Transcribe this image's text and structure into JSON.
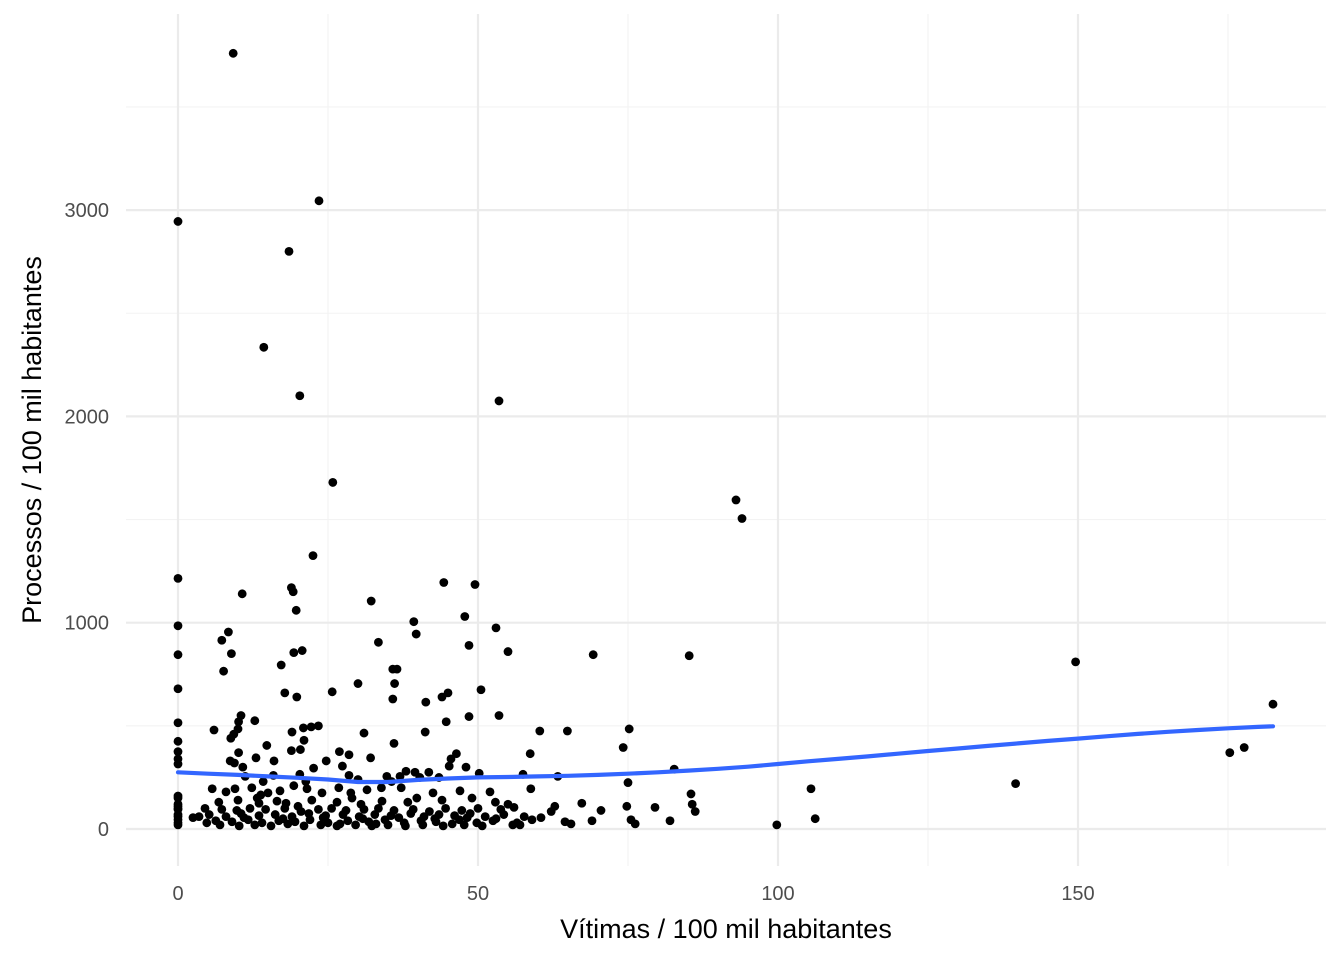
{
  "chart_data": {
    "type": "scatter",
    "title": "",
    "xlabel": "Vítimas / 100 mil habitantes",
    "ylabel": "Processos / 100 mil habitantes",
    "xlim": [
      -8,
      190
    ],
    "ylim": [
      -170,
      3900
    ],
    "x_ticks": [
      0,
      50,
      100,
      150
    ],
    "x_tick_labels": [
      "0",
      "50",
      "100",
      "150"
    ],
    "x_minor": [
      25,
      75,
      125,
      175
    ],
    "y_ticks": [
      0,
      1000,
      2000,
      3000
    ],
    "y_tick_labels": [
      "0",
      "1000",
      "2000",
      "3000"
    ],
    "y_minor": [
      500,
      1500,
      2500,
      3500
    ],
    "grid": true,
    "legend": "none",
    "colors": {
      "points": "#000000",
      "smooth": "#3366ff",
      "grid": "#ebebeb"
    },
    "points": [
      [
        9.2,
        3760
      ],
      [
        0,
        2945
      ],
      [
        23.5,
        3045
      ],
      [
        18.5,
        2800
      ],
      [
        14.3,
        2335
      ],
      [
        20.3,
        2100
      ],
      [
        53.5,
        2075
      ],
      [
        25.8,
        1680
      ],
      [
        93.0,
        1595
      ],
      [
        94.0,
        1505
      ],
      [
        22.5,
        1325
      ],
      [
        0,
        1215
      ],
      [
        44.3,
        1195
      ],
      [
        49.5,
        1185
      ],
      [
        18.9,
        1170
      ],
      [
        19.2,
        1150
      ],
      [
        10.7,
        1140
      ],
      [
        32.2,
        1105
      ],
      [
        19.7,
        1060
      ],
      [
        47.8,
        1030
      ],
      [
        39.3,
        1005
      ],
      [
        0,
        985
      ],
      [
        53.0,
        975
      ],
      [
        8.4,
        955
      ],
      [
        39.7,
        945
      ],
      [
        7.3,
        915
      ],
      [
        33.4,
        905
      ],
      [
        48.5,
        890
      ],
      [
        0,
        845
      ],
      [
        69.2,
        845
      ],
      [
        85.2,
        840
      ],
      [
        20.7,
        865
      ],
      [
        19.3,
        855
      ],
      [
        8.9,
        850
      ],
      [
        55.0,
        860
      ],
      [
        17.2,
        795
      ],
      [
        35.8,
        775
      ],
      [
        36.5,
        775
      ],
      [
        7.6,
        765
      ],
      [
        149.6,
        810
      ],
      [
        30.0,
        705
      ],
      [
        36.1,
        705
      ],
      [
        0,
        680
      ],
      [
        50.5,
        675
      ],
      [
        25.7,
        665
      ],
      [
        17.8,
        660
      ],
      [
        45.0,
        660
      ],
      [
        44.0,
        640
      ],
      [
        19.8,
        640
      ],
      [
        35.8,
        630
      ],
      [
        41.3,
        615
      ],
      [
        182.5,
        605
      ],
      [
        10.5,
        550
      ],
      [
        12.8,
        525
      ],
      [
        10.1,
        520
      ],
      [
        44.7,
        520
      ],
      [
        0,
        515
      ],
      [
        48.5,
        545
      ],
      [
        53.5,
        550
      ],
      [
        22.2,
        495
      ],
      [
        20.9,
        490
      ],
      [
        23.4,
        500
      ],
      [
        6.0,
        480
      ],
      [
        10.0,
        485
      ],
      [
        19.0,
        470
      ],
      [
        31.0,
        465
      ],
      [
        41.2,
        470
      ],
      [
        75.2,
        485
      ],
      [
        60.3,
        475
      ],
      [
        64.9,
        475
      ],
      [
        0,
        425
      ],
      [
        8.8,
        440
      ],
      [
        9.3,
        460
      ],
      [
        14.8,
        405
      ],
      [
        21.0,
        430
      ],
      [
        0,
        375
      ],
      [
        10.1,
        370
      ],
      [
        20.4,
        385
      ],
      [
        26.9,
        375
      ],
      [
        28.5,
        360
      ],
      [
        36.0,
        415
      ],
      [
        46.4,
        365
      ],
      [
        45.5,
        340
      ],
      [
        74.2,
        395
      ],
      [
        58.7,
        365
      ],
      [
        0,
        340
      ],
      [
        13.0,
        345
      ],
      [
        24.7,
        330
      ],
      [
        32.1,
        345
      ],
      [
        18.9,
        380
      ],
      [
        0,
        315
      ],
      [
        8.7,
        330
      ],
      [
        9.4,
        320
      ],
      [
        10.8,
        300
      ],
      [
        16.0,
        330
      ],
      [
        22.6,
        295
      ],
      [
        27.4,
        305
      ],
      [
        45.2,
        305
      ],
      [
        48.0,
        300
      ],
      [
        38.0,
        280
      ],
      [
        39.5,
        275
      ],
      [
        41.8,
        275
      ],
      [
        82.7,
        290
      ],
      [
        175.3,
        370
      ],
      [
        177.7,
        395
      ],
      [
        11.2,
        255
      ],
      [
        15.9,
        260
      ],
      [
        20.3,
        265
      ],
      [
        28.5,
        260
      ],
      [
        34.8,
        255
      ],
      [
        37.0,
        255
      ],
      [
        40.3,
        250
      ],
      [
        50.2,
        270
      ],
      [
        57.5,
        265
      ],
      [
        63.3,
        255
      ],
      [
        75.0,
        225
      ],
      [
        139.6,
        220
      ],
      [
        0,
        160
      ],
      [
        0,
        150
      ],
      [
        5.7,
        195
      ],
      [
        8.0,
        180
      ],
      [
        9.5,
        195
      ],
      [
        12.3,
        200
      ],
      [
        13.8,
        165
      ],
      [
        15.0,
        175
      ],
      [
        17.0,
        185
      ],
      [
        19.3,
        210
      ],
      [
        21.5,
        195
      ],
      [
        24.0,
        175
      ],
      [
        26.8,
        200
      ],
      [
        28.8,
        175
      ],
      [
        31.5,
        190
      ],
      [
        33.9,
        200
      ],
      [
        37.2,
        200
      ],
      [
        42.5,
        175
      ],
      [
        47.0,
        185
      ],
      [
        52.0,
        180
      ],
      [
        58.8,
        195
      ],
      [
        85.5,
        170
      ],
      [
        105.5,
        195
      ],
      [
        0,
        120
      ],
      [
        0,
        110
      ],
      [
        6.8,
        130
      ],
      [
        10.0,
        140
      ],
      [
        13.2,
        150
      ],
      [
        16.5,
        135
      ],
      [
        18.0,
        125
      ],
      [
        22.3,
        140
      ],
      [
        26.5,
        130
      ],
      [
        30.5,
        120
      ],
      [
        34.0,
        135
      ],
      [
        38.3,
        130
      ],
      [
        44.0,
        140
      ],
      [
        49.0,
        150
      ],
      [
        52.9,
        130
      ],
      [
        55.0,
        120
      ],
      [
        62.8,
        110
      ],
      [
        67.3,
        125
      ],
      [
        79.5,
        105
      ],
      [
        85.7,
        120
      ],
      [
        0,
        100
      ],
      [
        0,
        95
      ],
      [
        4.5,
        100
      ],
      [
        7.3,
        95
      ],
      [
        9.8,
        90
      ],
      [
        12.0,
        100
      ],
      [
        14.6,
        95
      ],
      [
        17.8,
        100
      ],
      [
        20.5,
        85
      ],
      [
        23.4,
        95
      ],
      [
        25.6,
        100
      ],
      [
        28.0,
        90
      ],
      [
        31.0,
        95
      ],
      [
        33.4,
        100
      ],
      [
        36.0,
        90
      ],
      [
        39.2,
        95
      ],
      [
        41.9,
        85
      ],
      [
        44.6,
        100
      ],
      [
        47.3,
        90
      ],
      [
        50.0,
        100
      ],
      [
        53.8,
        95
      ],
      [
        56.0,
        105
      ],
      [
        62.2,
        85
      ],
      [
        70.5,
        90
      ],
      [
        74.8,
        110
      ],
      [
        86.2,
        85
      ],
      [
        0,
        70
      ],
      [
        0,
        60
      ],
      [
        5.2,
        70
      ],
      [
        8.0,
        60
      ],
      [
        10.5,
        75
      ],
      [
        13.5,
        65
      ],
      [
        16.2,
        70
      ],
      [
        19.0,
        60
      ],
      [
        21.8,
        75
      ],
      [
        24.6,
        65
      ],
      [
        27.5,
        70
      ],
      [
        30.2,
        60
      ],
      [
        32.8,
        70
      ],
      [
        35.5,
        65
      ],
      [
        38.8,
        75
      ],
      [
        41.0,
        60
      ],
      [
        43.5,
        70
      ],
      [
        46.1,
        65
      ],
      [
        48.7,
        75
      ],
      [
        51.2,
        60
      ],
      [
        54.3,
        70
      ],
      [
        57.7,
        60
      ],
      [
        0,
        45
      ],
      [
        0,
        30
      ],
      [
        0,
        20
      ],
      [
        2.5,
        55
      ],
      [
        6.3,
        40
      ],
      [
        9.0,
        35
      ],
      [
        11.7,
        45
      ],
      [
        14.0,
        30
      ],
      [
        16.8,
        40
      ],
      [
        19.5,
        35
      ],
      [
        22.0,
        45
      ],
      [
        25.0,
        30
      ],
      [
        28.3,
        40
      ],
      [
        31.8,
        35
      ],
      [
        34.5,
        45
      ],
      [
        37.7,
        30
      ],
      [
        40.5,
        40
      ],
      [
        43.0,
        35
      ],
      [
        46.9,
        45
      ],
      [
        49.8,
        30
      ],
      [
        52.5,
        40
      ],
      [
        56.5,
        30
      ],
      [
        59.0,
        45
      ],
      [
        64.5,
        35
      ],
      [
        69.0,
        40
      ],
      [
        75.5,
        45
      ],
      [
        82.0,
        40
      ],
      [
        76.2,
        25
      ],
      [
        3.5,
        60
      ],
      [
        7.0,
        20
      ],
      [
        10.2,
        15
      ],
      [
        12.8,
        20
      ],
      [
        15.5,
        15
      ],
      [
        18.3,
        25
      ],
      [
        21.0,
        15
      ],
      [
        23.8,
        20
      ],
      [
        26.5,
        15
      ],
      [
        29.6,
        20
      ],
      [
        32.3,
        15
      ],
      [
        35.0,
        20
      ],
      [
        37.9,
        15
      ],
      [
        40.8,
        20
      ],
      [
        44.2,
        15
      ],
      [
        47.7,
        20
      ],
      [
        50.7,
        15
      ],
      [
        55.8,
        20
      ],
      [
        57.0,
        20
      ],
      [
        65.5,
        25
      ],
      [
        99.8,
        20
      ],
      [
        106.2,
        50
      ],
      [
        4.8,
        30
      ],
      [
        11.0,
        55
      ],
      [
        17.5,
        50
      ],
      [
        24.2,
        55
      ],
      [
        30.8,
        50
      ],
      [
        36.8,
        55
      ],
      [
        42.8,
        50
      ],
      [
        48.2,
        55
      ],
      [
        53.0,
        50
      ],
      [
        60.5,
        55
      ],
      [
        27.0,
        25
      ],
      [
        33.0,
        25
      ],
      [
        45.7,
        25
      ],
      [
        20.0,
        110
      ],
      [
        29.0,
        150
      ],
      [
        39.8,
        150
      ],
      [
        14.2,
        230
      ],
      [
        21.3,
        230
      ],
      [
        30.0,
        240
      ],
      [
        35.6,
        230
      ],
      [
        43.5,
        250
      ],
      [
        13.5,
        125
      ]
    ],
    "smooth": [
      [
        0,
        275
      ],
      [
        5,
        268
      ],
      [
        10,
        262
      ],
      [
        15,
        255
      ],
      [
        20,
        248
      ],
      [
        25,
        240
      ],
      [
        30,
        228
      ],
      [
        35,
        228
      ],
      [
        40,
        238
      ],
      [
        45,
        245
      ],
      [
        50,
        250
      ],
      [
        55,
        252
      ],
      [
        60,
        255
      ],
      [
        65,
        258
      ],
      [
        70,
        262
      ],
      [
        75,
        268
      ],
      [
        80,
        275
      ],
      [
        85,
        283
      ],
      [
        90,
        292
      ],
      [
        95,
        302
      ],
      [
        100,
        315
      ],
      [
        105,
        328
      ],
      [
        110,
        340
      ],
      [
        115,
        352
      ],
      [
        120,
        365
      ],
      [
        125,
        378
      ],
      [
        130,
        390
      ],
      [
        135,
        403
      ],
      [
        140,
        415
      ],
      [
        145,
        427
      ],
      [
        150,
        438
      ],
      [
        155,
        450
      ],
      [
        160,
        461
      ],
      [
        165,
        471
      ],
      [
        170,
        480
      ],
      [
        175,
        488
      ],
      [
        180,
        495
      ],
      [
        182.5,
        498
      ]
    ]
  }
}
